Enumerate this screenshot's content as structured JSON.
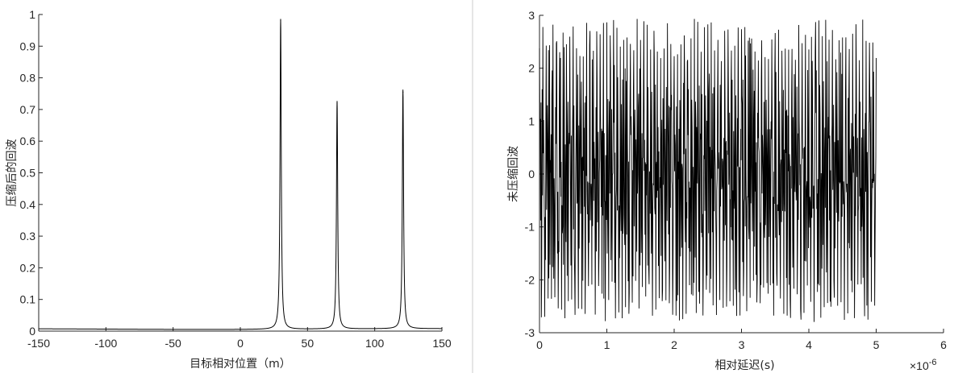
{
  "chart_data": [
    {
      "type": "line",
      "title": "",
      "xlabel": "目标相对位置（m）",
      "ylabel": "压缩后的回波",
      "xlim": [
        -150,
        150
      ],
      "ylim": [
        0,
        1
      ],
      "xticks": [
        "-150",
        "-100",
        "-50",
        "0",
        "50",
        "100",
        "150"
      ],
      "yticks": [
        "0",
        "0.1",
        "0.2",
        "0.3",
        "0.4",
        "0.5",
        "0.6",
        "0.7",
        "0.8",
        "0.9",
        "1"
      ],
      "grid": false,
      "baseline": 0.008,
      "series": [
        {
          "peaks": [
            {
              "x": 30,
              "y": 0.98
            },
            {
              "x": 72,
              "y": 0.72
            },
            {
              "x": 121,
              "y": 0.755
            }
          ]
        }
      ]
    },
    {
      "type": "line",
      "title": "",
      "xlabel": "相对延迟(s)",
      "ylabel": "未压缩回波",
      "xlim": [
        0,
        6
      ],
      "ylim": [
        -3,
        3
      ],
      "x_exponent_label": "×10",
      "x_exponent": "-6",
      "xticks": [
        "0",
        "1",
        "2",
        "3",
        "4",
        "5",
        "6"
      ],
      "yticks": [
        "-3",
        "-2",
        "-1",
        "0",
        "1",
        "2",
        "3"
      ],
      "grid": false,
      "series": [
        {
          "x_range": [
            0,
            5
          ],
          "amplitude_max": 2.95,
          "amplitude_min": -2.8
        }
      ]
    }
  ]
}
